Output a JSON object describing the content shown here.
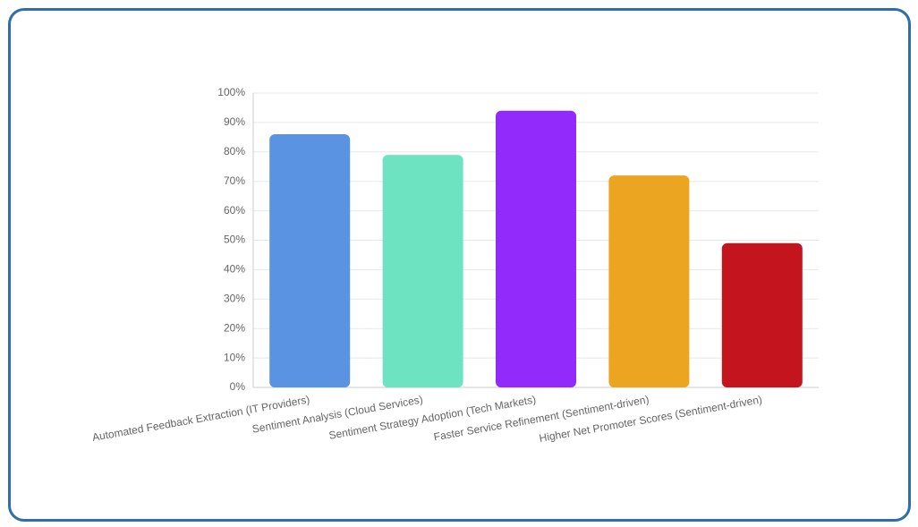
{
  "chart_data": {
    "type": "bar",
    "categories": [
      "Automated Feedback Extraction (IT Providers)",
      "Sentiment Analysis (Cloud Services)",
      "Sentiment Strategy Adoption (Tech Markets)",
      "Faster Service Refinement (Sentiment-driven)",
      "Higher Net Promoter Scores (Sentiment-driven)"
    ],
    "values": [
      86,
      79,
      94,
      72,
      49
    ],
    "colors": [
      "#5b93e3",
      "#6de3c2",
      "#922afc",
      "#eba520",
      "#c4141e"
    ],
    "ylim": [
      0,
      100
    ],
    "yticks": [
      {
        "value": 0,
        "label": "0%"
      },
      {
        "value": 10,
        "label": "10%"
      },
      {
        "value": 20,
        "label": "20%"
      },
      {
        "value": 30,
        "label": "30%"
      },
      {
        "value": 40,
        "label": "40%"
      },
      {
        "value": 50,
        "label": "50%"
      },
      {
        "value": 60,
        "label": "60%"
      },
      {
        "value": 70,
        "label": "70%"
      },
      {
        "value": 80,
        "label": "80%"
      },
      {
        "value": 90,
        "label": "90%"
      },
      {
        "value": 100,
        "label": "100%"
      }
    ],
    "grid": true
  }
}
